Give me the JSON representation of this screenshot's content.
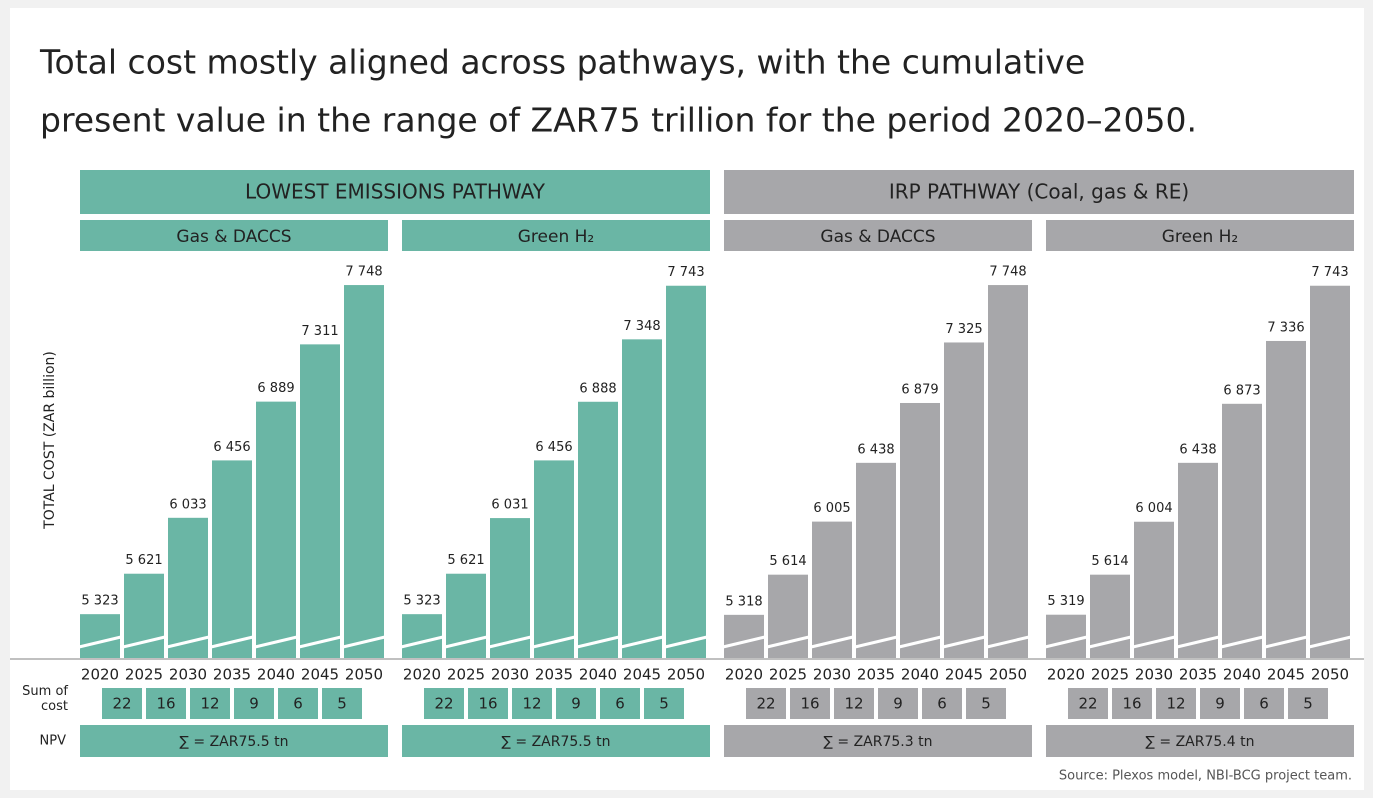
{
  "title_lines": [
    "Total cost mostly aligned across pathways, with the cumulative",
    "present value in the range of ZAR75 trillion for the period 2020–2050."
  ],
  "y_label": "TOTAL COST (ZAR billion)",
  "pathways": [
    {
      "title": "LOWEST EMISSIONS PATHWAY",
      "color": "#6ab6a5"
    },
    {
      "title": "IRP PATHWAY (Coal, gas & RE)",
      "color": "#a7a7aa"
    }
  ],
  "row_labels": [
    "Sum of cost",
    "NPV"
  ],
  "source": "Source: Plexos model, NBI-BCG project team.",
  "chart_data": [
    {
      "type": "bar",
      "subtitle": "Gas & DACCS",
      "color": "#6ab6a5",
      "ylim": [
        5000,
        7800
      ],
      "categories": [
        "2020",
        "2025",
        "2030",
        "2035",
        "2040",
        "2045",
        "2050"
      ],
      "values": [
        5323,
        5621,
        6033,
        6456,
        6889,
        7311,
        7748
      ],
      "value_labels": [
        "5 323",
        "5 621",
        "6 033",
        "6 456",
        "6 889",
        "7 311",
        "7 748"
      ],
      "sum_of_cost": [
        22,
        16,
        12,
        9,
        6,
        5
      ],
      "npv": "∑ = ZAR75.5 tn"
    },
    {
      "type": "bar",
      "subtitle": "Green H₂",
      "color": "#6ab6a5",
      "ylim": [
        5000,
        7800
      ],
      "categories": [
        "2020",
        "2025",
        "2030",
        "2035",
        "2040",
        "2045",
        "2050"
      ],
      "values": [
        5323,
        5621,
        6031,
        6456,
        6888,
        7348,
        7743
      ],
      "value_labels": [
        "5 323",
        "5 621",
        "6 031",
        "6 456",
        "6 888",
        "7 348",
        "7 743"
      ],
      "sum_of_cost": [
        22,
        16,
        12,
        9,
        6,
        5
      ],
      "npv": "∑ = ZAR75.5 tn"
    },
    {
      "type": "bar",
      "subtitle": "Gas & DACCS",
      "color": "#a7a7aa",
      "ylim": [
        5000,
        7800
      ],
      "categories": [
        "2020",
        "2025",
        "2030",
        "2035",
        "2040",
        "2045",
        "2050"
      ],
      "values": [
        5318,
        5614,
        6005,
        6438,
        6879,
        7325,
        7748
      ],
      "value_labels": [
        "5 318",
        "5 614",
        "6 005",
        "6 438",
        "6 879",
        "7 325",
        "7 748"
      ],
      "sum_of_cost": [
        22,
        16,
        12,
        9,
        6,
        5
      ],
      "npv": "∑ = ZAR75.3 tn"
    },
    {
      "type": "bar",
      "subtitle": "Green H₂",
      "color": "#a7a7aa",
      "ylim": [
        5000,
        7800
      ],
      "categories": [
        "2020",
        "2025",
        "2030",
        "2035",
        "2040",
        "2045",
        "2050"
      ],
      "values": [
        5319,
        5614,
        6004,
        6438,
        6873,
        7336,
        7743
      ],
      "value_labels": [
        "5 319",
        "5 614",
        "6 004",
        "6 438",
        "6 873",
        "7 336",
        "7 743"
      ],
      "sum_of_cost": [
        22,
        16,
        12,
        9,
        6,
        5
      ],
      "npv": "∑ = ZAR75.4 tn"
    }
  ]
}
